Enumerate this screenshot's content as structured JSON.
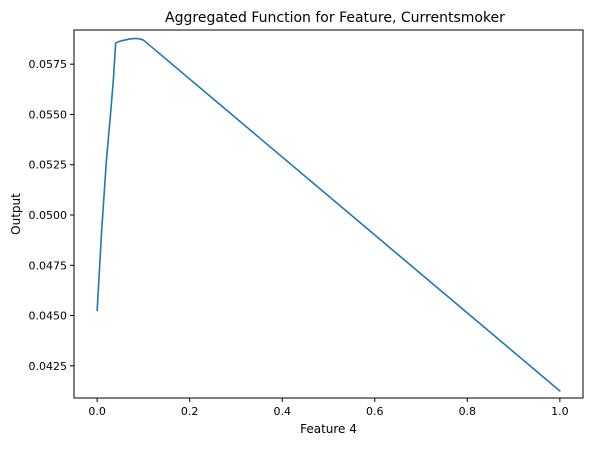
{
  "chart_data": {
    "type": "line",
    "title": "Aggregated Function for Feature, Currentsmoker",
    "xlabel": "Feature 4",
    "ylabel": "Output",
    "xlim": [
      -0.05,
      1.05
    ],
    "ylim": [
      0.0409,
      0.0592
    ],
    "grid": false,
    "xticks": [
      0.0,
      0.2,
      0.4,
      0.6,
      0.8,
      1.0
    ],
    "xtick_labels": [
      "0.0",
      "0.2",
      "0.4",
      "0.6",
      "0.8",
      "1.0"
    ],
    "yticks": [
      0.0425,
      0.045,
      0.0475,
      0.05,
      0.0525,
      0.055,
      0.0575
    ],
    "ytick_labels": [
      "0.0425",
      "0.0450",
      "0.0475",
      "0.0500",
      "0.0525",
      "0.0550",
      "0.0575"
    ],
    "series": [
      {
        "color": "#1f77b4",
        "x": [
          0.0,
          0.01,
          0.02,
          0.03,
          0.035,
          0.04,
          0.05,
          0.06,
          0.07,
          0.08,
          0.09,
          0.1,
          1.0
        ],
        "y": [
          0.04525,
          0.0493,
          0.0527,
          0.0553,
          0.0567,
          0.05855,
          0.05865,
          0.0587,
          0.05875,
          0.05878,
          0.05877,
          0.0587,
          0.04125
        ]
      }
    ]
  }
}
